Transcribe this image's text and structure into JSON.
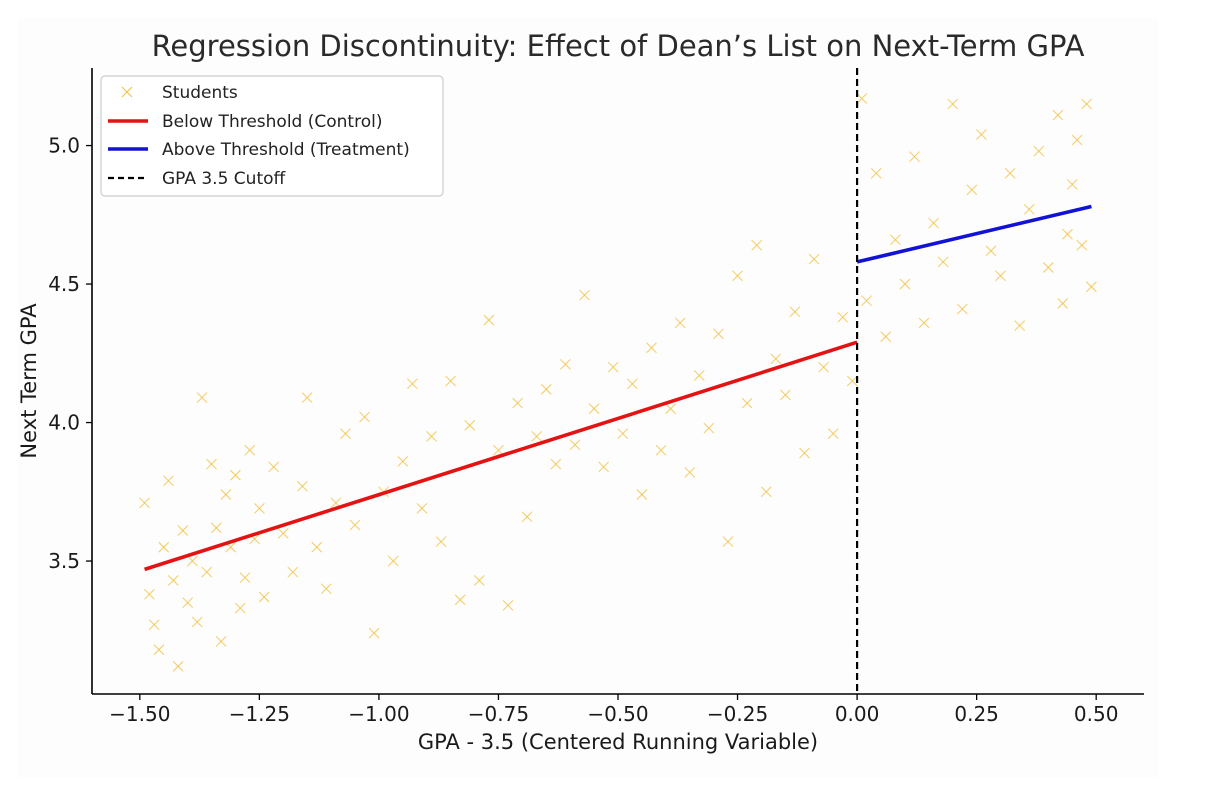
{
  "chart_data": {
    "type": "scatter",
    "title": "Regression Discontinuity: Effect of Dean’s List on Next-Term GPA",
    "xlabel": "GPA - 3.5 (Centered Running Variable)",
    "ylabel": "Next Term GPA",
    "xlim": [
      -1.6,
      0.6
    ],
    "ylim": [
      3.02,
      5.28
    ],
    "x_ticks": [
      -1.5,
      -1.25,
      -1.0,
      -0.75,
      -0.5,
      -0.25,
      0.0,
      0.25,
      0.5
    ],
    "x_tick_labels": [
      "−1.50",
      "−1.25",
      "−1.00",
      "−0.75",
      "−0.50",
      "−0.25",
      "0.00",
      "0.25",
      "0.50"
    ],
    "y_ticks": [
      3.5,
      4.0,
      4.5,
      5.0
    ],
    "y_tick_labels": [
      "3.5",
      "4.0",
      "4.5",
      "5.0"
    ],
    "grid": false,
    "legend_position": "top-left",
    "series": [
      {
        "name": "Students",
        "kind": "scatter",
        "marker": "x",
        "color": "#f0c040",
        "points": [
          [
            -1.49,
            3.71
          ],
          [
            -1.48,
            3.38
          ],
          [
            -1.47,
            3.27
          ],
          [
            -1.46,
            3.18
          ],
          [
            -1.45,
            3.55
          ],
          [
            -1.44,
            3.79
          ],
          [
            -1.43,
            3.43
          ],
          [
            -1.42,
            3.12
          ],
          [
            -1.41,
            3.61
          ],
          [
            -1.4,
            3.35
          ],
          [
            -1.39,
            3.5
          ],
          [
            -1.38,
            3.28
          ],
          [
            -1.37,
            4.09
          ],
          [
            -1.36,
            3.46
          ],
          [
            -1.35,
            3.85
          ],
          [
            -1.34,
            3.62
          ],
          [
            -1.33,
            3.21
          ],
          [
            -1.32,
            3.74
          ],
          [
            -1.31,
            3.55
          ],
          [
            -1.3,
            3.81
          ],
          [
            -1.29,
            3.33
          ],
          [
            -1.28,
            3.44
          ],
          [
            -1.27,
            3.9
          ],
          [
            -1.26,
            3.58
          ],
          [
            -1.25,
            3.69
          ],
          [
            -1.24,
            3.37
          ],
          [
            -1.22,
            3.84
          ],
          [
            -1.2,
            3.6
          ],
          [
            -1.18,
            3.46
          ],
          [
            -1.16,
            3.77
          ],
          [
            -1.15,
            4.09
          ],
          [
            -1.13,
            3.55
          ],
          [
            -1.11,
            3.4
          ],
          [
            -1.09,
            3.71
          ],
          [
            -1.07,
            3.96
          ],
          [
            -1.05,
            3.63
          ],
          [
            -1.03,
            4.02
          ],
          [
            -1.01,
            3.24
          ],
          [
            -0.99,
            3.75
          ],
          [
            -0.97,
            3.5
          ],
          [
            -0.95,
            3.86
          ],
          [
            -0.93,
            4.14
          ],
          [
            -0.91,
            3.69
          ],
          [
            -0.89,
            3.95
          ],
          [
            -0.87,
            3.57
          ],
          [
            -0.85,
            4.15
          ],
          [
            -0.83,
            3.36
          ],
          [
            -0.81,
            3.99
          ],
          [
            -0.79,
            3.43
          ],
          [
            -0.77,
            4.37
          ],
          [
            -0.75,
            3.9
          ],
          [
            -0.73,
            3.34
          ],
          [
            -0.71,
            4.07
          ],
          [
            -0.69,
            3.66
          ],
          [
            -0.67,
            3.95
          ],
          [
            -0.65,
            4.12
          ],
          [
            -0.63,
            3.85
          ],
          [
            -0.61,
            4.21
          ],
          [
            -0.59,
            3.92
          ],
          [
            -0.57,
            4.46
          ],
          [
            -0.55,
            4.05
          ],
          [
            -0.53,
            3.84
          ],
          [
            -0.51,
            4.2
          ],
          [
            -0.49,
            3.96
          ],
          [
            -0.47,
            4.14
          ],
          [
            -0.45,
            3.74
          ],
          [
            -0.43,
            4.27
          ],
          [
            -0.41,
            3.9
          ],
          [
            -0.39,
            4.05
          ],
          [
            -0.37,
            4.36
          ],
          [
            -0.35,
            3.82
          ],
          [
            -0.33,
            4.17
          ],
          [
            -0.31,
            3.98
          ],
          [
            -0.29,
            4.32
          ],
          [
            -0.27,
            3.57
          ],
          [
            -0.25,
            4.53
          ],
          [
            -0.23,
            4.07
          ],
          [
            -0.21,
            4.64
          ],
          [
            -0.19,
            3.75
          ],
          [
            -0.17,
            4.23
          ],
          [
            -0.15,
            4.1
          ],
          [
            -0.13,
            4.4
          ],
          [
            -0.11,
            3.89
          ],
          [
            -0.09,
            4.59
          ],
          [
            -0.07,
            4.2
          ],
          [
            -0.05,
            3.96
          ],
          [
            -0.03,
            4.38
          ],
          [
            -0.01,
            4.15
          ],
          [
            0.01,
            5.17
          ],
          [
            0.02,
            4.44
          ],
          [
            0.04,
            4.9
          ],
          [
            0.06,
            4.31
          ],
          [
            0.08,
            4.66
          ],
          [
            0.1,
            4.5
          ],
          [
            0.12,
            4.96
          ],
          [
            0.14,
            4.36
          ],
          [
            0.16,
            4.72
          ],
          [
            0.18,
            4.58
          ],
          [
            0.2,
            5.15
          ],
          [
            0.22,
            4.41
          ],
          [
            0.24,
            4.84
          ],
          [
            0.26,
            5.04
          ],
          [
            0.28,
            4.62
          ],
          [
            0.3,
            4.53
          ],
          [
            0.32,
            4.9
          ],
          [
            0.34,
            4.35
          ],
          [
            0.36,
            4.77
          ],
          [
            0.38,
            4.98
          ],
          [
            0.4,
            4.56
          ],
          [
            0.42,
            5.11
          ],
          [
            0.43,
            4.43
          ],
          [
            0.44,
            4.68
          ],
          [
            0.45,
            4.86
          ],
          [
            0.46,
            5.02
          ],
          [
            0.47,
            4.64
          ],
          [
            0.48,
            5.15
          ],
          [
            0.49,
            4.49
          ]
        ]
      },
      {
        "name": "Below Threshold (Control)",
        "kind": "line",
        "color": "#e41212",
        "points": [
          [
            -1.49,
            3.47
          ],
          [
            0.0,
            4.29
          ]
        ]
      },
      {
        "name": "Above Threshold (Treatment)",
        "kind": "line",
        "color": "#1212d6",
        "points": [
          [
            0.0,
            4.58
          ],
          [
            0.49,
            4.78
          ]
        ]
      },
      {
        "name": "GPA 3.5 Cutoff",
        "kind": "vline",
        "color": "#000000",
        "x": 0.0
      }
    ]
  }
}
